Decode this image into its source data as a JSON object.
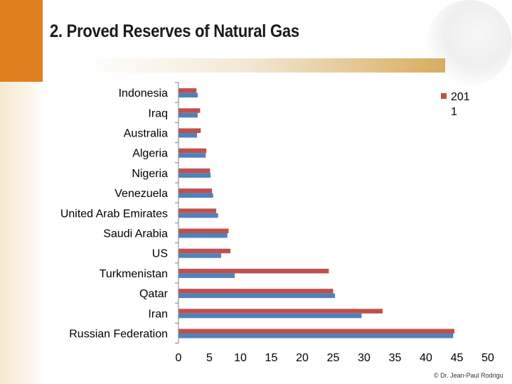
{
  "slide": {
    "title": "2. Proved Reserves of Natural Gas",
    "footer": "© Dr. Jean-Paul Rodrigu"
  },
  "colors": {
    "accent": "#e07f1f",
    "series_2011": "#c0504d",
    "series_other": "#4f81bd"
  },
  "chart_data": {
    "type": "bar",
    "orientation": "horizontal",
    "categories": [
      "Indonesia",
      "Iraq",
      "Australia",
      "Algeria",
      "Nigeria",
      "Venezuela",
      "United Arab Emirates",
      "Saudi Arabia",
      "US",
      "Turkmenistan",
      "Qatar",
      "Iran",
      "Russian Federation"
    ],
    "series": [
      {
        "name": "201 1",
        "color": "#c0504d",
        "values": [
          2.9,
          3.5,
          3.6,
          4.5,
          5.1,
          5.4,
          6.1,
          8.1,
          8.4,
          24.3,
          25.0,
          33.0,
          44.6
        ]
      },
      {
        "color": "#4f81bd",
        "values": [
          3.1,
          3.1,
          3.0,
          4.4,
          5.2,
          5.6,
          6.4,
          7.9,
          6.9,
          9.1,
          25.3,
          29.6,
          44.4
        ]
      }
    ],
    "legend": {
      "label_lines": [
        "201",
        "1"
      ],
      "position": "top-right"
    },
    "xlim": [
      0,
      50
    ],
    "xticks": [
      0,
      5,
      10,
      15,
      20,
      25,
      30,
      35,
      40,
      45,
      50
    ],
    "xlabel": "",
    "ylabel": "",
    "grid": false
  }
}
